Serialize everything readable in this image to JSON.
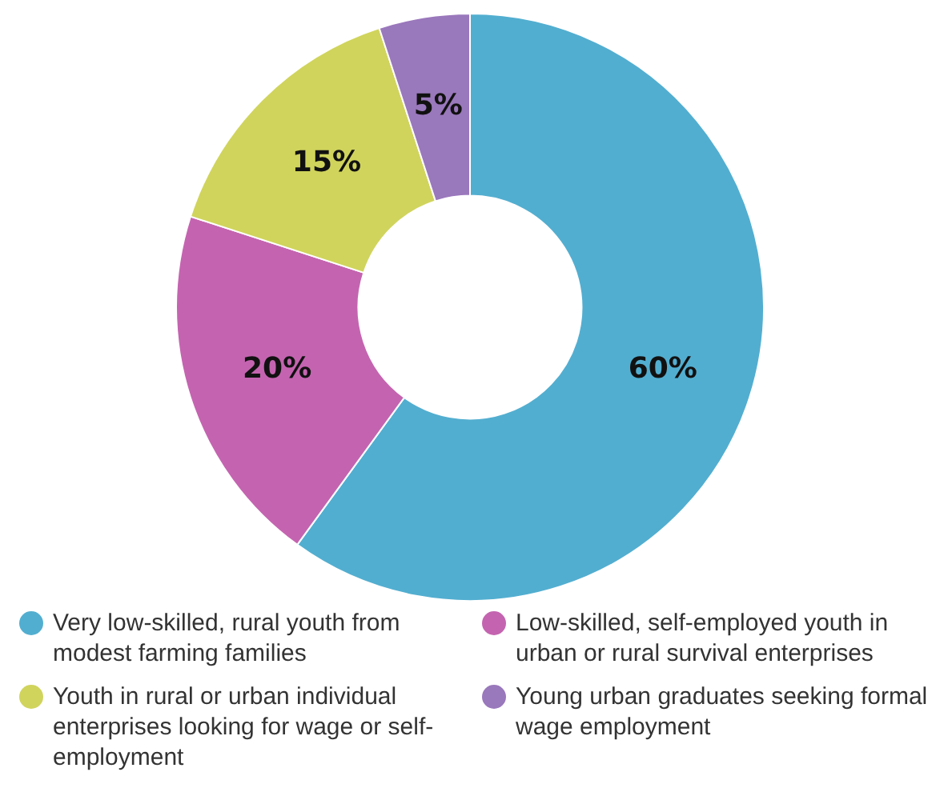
{
  "chart_data": {
    "type": "donut",
    "categories": [
      "Very low-skilled, rural youth from modest farming families",
      "Low-skilled, self-employed youth in urban or rural survival enterprises",
      "Youth in rural or urban individual enterprises looking for wage or self-employment",
      "Young urban graduates seeking formal wage employment"
    ],
    "values": [
      60,
      20,
      15,
      5
    ],
    "colors": [
      "#52aed0",
      "#c464b0",
      "#d0d45c",
      "#9a78bc"
    ],
    "value_labels": [
      "60%",
      "20%",
      "15%",
      "5%"
    ],
    "legend": "bottom"
  }
}
